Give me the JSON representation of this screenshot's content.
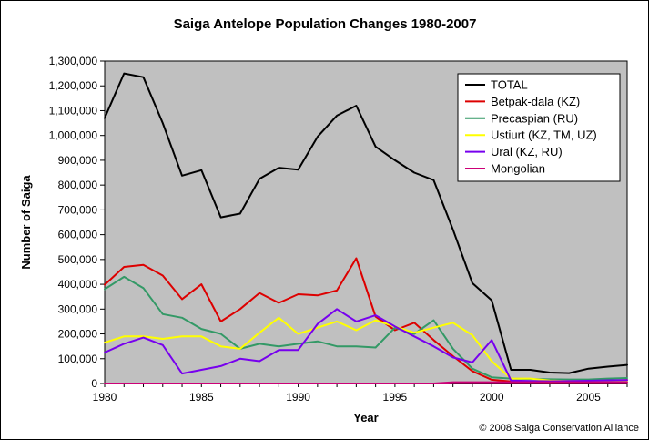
{
  "chart_data": {
    "type": "line",
    "title": "Saiga Antelope Population Changes 1980-2007",
    "xlabel": "Year",
    "ylabel": "Number of Saiga",
    "credit": "© 2008 Saiga Conservation Alliance",
    "xlim": [
      1980,
      2007
    ],
    "ylim": [
      0,
      1300000
    ],
    "x_ticks": [
      1980,
      1985,
      1990,
      1995,
      2000,
      2005
    ],
    "y_ticks": [
      0,
      100000,
      200000,
      300000,
      400000,
      500000,
      600000,
      700000,
      800000,
      900000,
      1000000,
      1100000,
      1200000,
      1300000
    ],
    "y_tick_labels": [
      "0",
      "100,000",
      "200,000",
      "300,000",
      "400,000",
      "500,000",
      "600,000",
      "700,000",
      "800,000",
      "900,000",
      "1,000,000",
      "1,100,000",
      "1,200,000",
      "1,300,000"
    ],
    "grid": false,
    "plot_background": "#c0c0c0",
    "legend_position": "top-right",
    "x": [
      1980,
      1981,
      1982,
      1983,
      1984,
      1985,
      1986,
      1987,
      1988,
      1989,
      1990,
      1991,
      1992,
      1993,
      1994,
      1995,
      1996,
      1997,
      1998,
      1999,
      2000,
      2001,
      2002,
      2003,
      2004,
      2005,
      2006,
      2007
    ],
    "series": [
      {
        "name": "TOTAL",
        "color": "#000000",
        "values": [
          1070000,
          1250000,
          1235000,
          1050000,
          838000,
          860000,
          670000,
          685000,
          825000,
          870000,
          862000,
          995000,
          1080000,
          1120000,
          955000,
          900000,
          850000,
          820000,
          620000,
          405000,
          335000,
          55000,
          55000,
          44000,
          42000,
          60000,
          68000,
          75000
        ]
      },
      {
        "name": "Betpak-dala (KZ)",
        "color": "#dd0000",
        "values": [
          398000,
          470000,
          478000,
          435000,
          340000,
          400000,
          250000,
          300000,
          365000,
          325000,
          360000,
          355000,
          375000,
          505000,
          270000,
          215000,
          245000,
          175000,
          110000,
          50000,
          15000,
          8000,
          6000,
          5000,
          6000,
          10000,
          12000,
          14000
        ]
      },
      {
        "name": "Precaspian (RU)",
        "color": "#339966",
        "values": [
          380000,
          430000,
          385000,
          280000,
          265000,
          220000,
          200000,
          140000,
          160000,
          150000,
          160000,
          170000,
          150000,
          150000,
          145000,
          225000,
          200000,
          255000,
          140000,
          60000,
          25000,
          20000,
          18000,
          17000,
          16000,
          16000,
          20000,
          22000
        ]
      },
      {
        "name": "Ustiurt (KZ, TM, UZ)",
        "color": "#ffff00",
        "values": [
          165000,
          190000,
          190000,
          180000,
          190000,
          190000,
          150000,
          140000,
          205000,
          265000,
          200000,
          225000,
          250000,
          215000,
          255000,
          230000,
          205000,
          225000,
          245000,
          195000,
          90000,
          20000,
          20000,
          12000,
          10000,
          10000,
          11000,
          12000
        ]
      },
      {
        "name": "Ural (KZ, RU)",
        "color": "#7700ee",
        "values": [
          125000,
          160000,
          185000,
          155000,
          40000,
          55000,
          70000,
          100000,
          90000,
          135000,
          135000,
          240000,
          300000,
          250000,
          275000,
          230000,
          190000,
          150000,
          105000,
          85000,
          175000,
          12000,
          10000,
          9000,
          10000,
          11000,
          13000,
          14000
        ]
      },
      {
        "name": "Mongolian",
        "color": "#cc0077",
        "values": [
          0,
          0,
          0,
          0,
          0,
          0,
          0,
          0,
          0,
          0,
          0,
          0,
          0,
          0,
          0,
          0,
          0,
          0,
          5000,
          5000,
          5000,
          5000,
          5000,
          5000,
          5000,
          5000,
          5000,
          5000
        ]
      }
    ]
  }
}
